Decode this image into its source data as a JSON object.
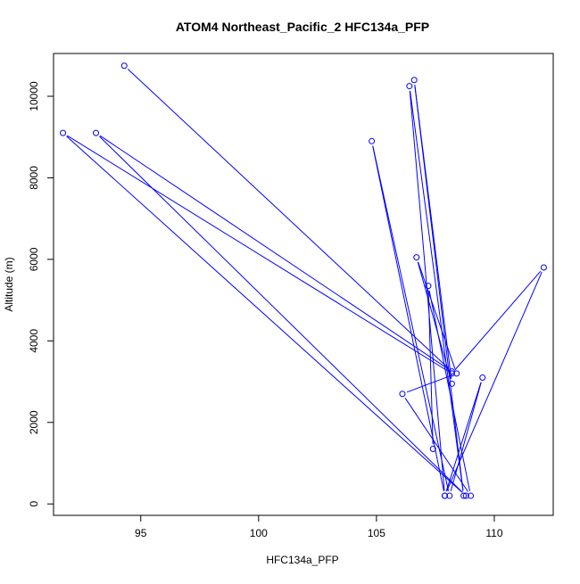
{
  "chart_data": {
    "type": "line",
    "title": "ATOM4 Northeast_Pacific_2 HFC134a_PFP",
    "xlabel": "HFC134a_PFP",
    "ylabel": "Altitude (m)",
    "xlim": [
      91.3,
      112.5
    ],
    "ylim": [
      -280,
      11050
    ],
    "xticks": [
      95,
      100,
      105,
      110
    ],
    "yticks": [
      0,
      2000,
      4000,
      6000,
      8000,
      10000
    ],
    "grid": false,
    "legend": "none",
    "color": "#0000ff",
    "series": [
      {
        "x": [
          94.3,
          108.2,
          93.1,
          108.8,
          91.7,
          108.2,
          112.1,
          107.9,
          109.5,
          108.1,
          104.8,
          107.9,
          106.4,
          108.7,
          106.6,
          108.2,
          106.7,
          108.4,
          106.1,
          109.0,
          107.2,
          107.4
        ],
        "y": [
          10750,
          3250,
          9100,
          200,
          9100,
          3200,
          5800,
          200,
          3100,
          200,
          8900,
          200,
          10250,
          200,
          10400,
          2950,
          6050,
          3200,
          2700,
          200,
          5350,
          1350
        ]
      }
    ]
  }
}
